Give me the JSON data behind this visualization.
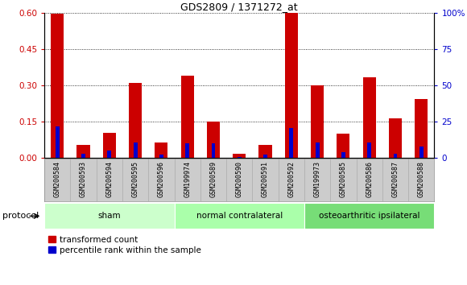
{
  "title": "GDS2809 / 1371272_at",
  "samples": [
    "GSM200584",
    "GSM200593",
    "GSM200594",
    "GSM200595",
    "GSM200596",
    "GSM199974",
    "GSM200589",
    "GSM200590",
    "GSM200591",
    "GSM200592",
    "GSM199973",
    "GSM200585",
    "GSM200586",
    "GSM200587",
    "GSM200588"
  ],
  "transformed_count": [
    0.595,
    0.055,
    0.105,
    0.31,
    0.065,
    0.34,
    0.15,
    0.018,
    0.055,
    0.605,
    0.3,
    0.1,
    0.335,
    0.165,
    0.245
  ],
  "percentile_rank": [
    22,
    3,
    5,
    11,
    2.5,
    10,
    10,
    1,
    2.5,
    21,
    11,
    4,
    11,
    3,
    8
  ],
  "groups": [
    {
      "label": "sham",
      "start": 0,
      "end": 5,
      "color": "#ccffcc"
    },
    {
      "label": "normal contralateral",
      "start": 5,
      "end": 10,
      "color": "#aaffaa"
    },
    {
      "label": "osteoarthritic ipsilateral",
      "start": 10,
      "end": 15,
      "color": "#77dd77"
    }
  ],
  "ylim_left": [
    0,
    0.6
  ],
  "ylim_right": [
    0,
    100
  ],
  "yticks_left": [
    0,
    0.15,
    0.3,
    0.45,
    0.6
  ],
  "yticks_right": [
    0,
    25,
    50,
    75,
    100
  ],
  "bar_color_red": "#cc0000",
  "bar_color_blue": "#0000cc",
  "red_bar_width": 0.5,
  "blue_bar_width": 0.15,
  "protocol_label": "protocol",
  "legend_red": "transformed count",
  "legend_blue": "percentile rank within the sample",
  "plot_bg": "#ffffff",
  "gray_bg": "#cccccc",
  "title_fontsize": 9
}
